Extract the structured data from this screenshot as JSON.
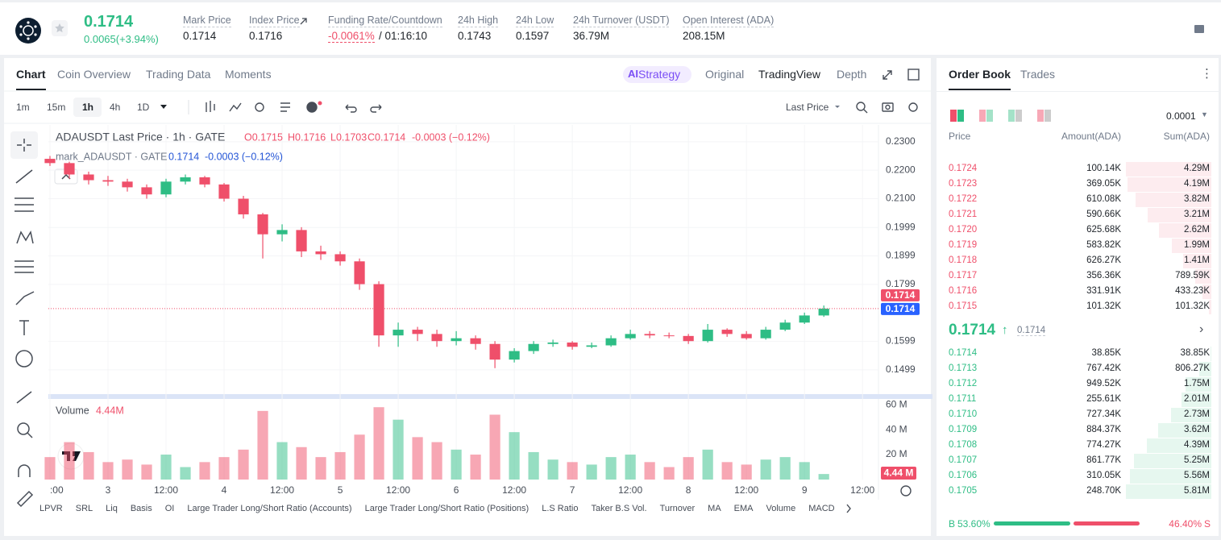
{
  "header": {
    "price": "0.1714",
    "change": "0.0065(+3.94%)",
    "stats": [
      {
        "label": "Mark Price",
        "value": "0.1714"
      },
      {
        "label": "Index Price",
        "value": "0.1716"
      },
      {
        "label": "Funding Rate/Countdown",
        "value": "-0.0061%",
        "extra": "/ 01:16:10"
      },
      {
        "label": "24h High",
        "value": "0.1743"
      },
      {
        "label": "24h Low",
        "value": "0.1597"
      },
      {
        "label": "24h Turnover (USDT)",
        "value": "36.79M"
      },
      {
        "label": "Open Interest (ADA)",
        "value": "208.15M"
      }
    ]
  },
  "tabs": {
    "left": [
      "Chart",
      "Coin Overview",
      "Trading Data",
      "Moments"
    ],
    "right": [
      "Strategy",
      "Original",
      "TradingView",
      "Depth"
    ]
  },
  "toolbar": {
    "intervals": [
      "1m",
      "15m",
      "1h",
      "4h",
      "1D"
    ],
    "price_type": "Last Price"
  },
  "chart_data": {
    "type": "candlestick",
    "title": "ADAUSDT Last Price · 1h · GATE",
    "ohlc_legend": [
      "O0.1715",
      "H0.1716",
      "L0.1703",
      "C0.1714",
      "-0.0003 (−0.12%)"
    ],
    "mark_legend": "mark_ADAUSDT · GATE",
    "mark_values": [
      "0.1714",
      "-0.0003 (−0.12%)"
    ],
    "x": [
      0,
      4,
      8,
      12,
      16,
      20,
      24,
      28,
      32,
      36,
      40,
      44,
      48,
      52,
      56,
      60,
      64,
      68,
      72,
      76,
      80,
      84,
      88,
      92,
      96,
      100,
      104,
      108,
      112,
      116,
      120,
      124,
      128,
      132,
      136,
      140,
      144,
      148,
      152,
      156,
      160
    ],
    "open": [
      0.224,
      0.2225,
      0.2185,
      0.2165,
      0.216,
      0.214,
      0.2115,
      0.216,
      0.2175,
      0.215,
      0.21,
      0.2045,
      0.1975,
      0.199,
      0.1915,
      0.1905,
      0.188,
      0.18,
      0.162,
      0.164,
      0.1625,
      0.16,
      0.161,
      0.159,
      0.1535,
      0.1565,
      0.159,
      0.1595,
      0.158,
      0.1585,
      0.161,
      0.1625,
      0.162,
      0.1618,
      0.16,
      0.164,
      0.1625,
      0.161,
      0.164,
      0.1665,
      0.169
    ],
    "high": [
      0.225,
      0.223,
      0.2195,
      0.218,
      0.217,
      0.215,
      0.217,
      0.2185,
      0.218,
      0.2155,
      0.211,
      0.205,
      0.201,
      0.2,
      0.1935,
      0.1915,
      0.189,
      0.181,
      0.1665,
      0.165,
      0.164,
      0.1635,
      0.162,
      0.16,
      0.1575,
      0.16,
      0.1605,
      0.16,
      0.1595,
      0.162,
      0.164,
      0.1635,
      0.163,
      0.1625,
      0.166,
      0.1645,
      0.1635,
      0.165,
      0.1675,
      0.17,
      0.1725
    ],
    "low": [
      0.2215,
      0.217,
      0.215,
      0.2145,
      0.2125,
      0.21,
      0.2105,
      0.215,
      0.214,
      0.209,
      0.203,
      0.189,
      0.195,
      0.1895,
      0.1885,
      0.1865,
      0.178,
      0.158,
      0.158,
      0.16,
      0.158,
      0.1585,
      0.157,
      0.1505,
      0.1525,
      0.1555,
      0.158,
      0.157,
      0.1575,
      0.158,
      0.1605,
      0.161,
      0.161,
      0.159,
      0.1595,
      0.1615,
      0.1605,
      0.1605,
      0.1635,
      0.166,
      0.1685
    ],
    "close": [
      0.2225,
      0.2185,
      0.2165,
      0.216,
      0.214,
      0.2115,
      0.216,
      0.2175,
      0.215,
      0.21,
      0.2045,
      0.1975,
      0.199,
      0.1915,
      0.1905,
      0.188,
      0.18,
      0.162,
      0.164,
      0.1625,
      0.16,
      0.161,
      0.159,
      0.1535,
      0.1565,
      0.159,
      0.1595,
      0.158,
      0.1585,
      0.161,
      0.1625,
      0.162,
      0.1618,
      0.16,
      0.164,
      0.1625,
      0.161,
      0.164,
      0.1665,
      0.169,
      0.1714
    ],
    "xlim": [
      -0.33,
      171.3
    ],
    "xticks": [
      {
        "value": 0,
        "label": ":00"
      },
      {
        "value": 12,
        "label": "3"
      },
      {
        "value": 24,
        "label": "12:00"
      },
      {
        "value": 36,
        "label": "4"
      },
      {
        "value": 48,
        "label": "12:00"
      },
      {
        "value": 60,
        "label": "5"
      },
      {
        "value": 72,
        "label": "12:00"
      },
      {
        "value": 84,
        "label": "6"
      },
      {
        "value": 96,
        "label": "12:00"
      },
      {
        "value": 108,
        "label": "7"
      },
      {
        "value": 120,
        "label": "12:00"
      },
      {
        "value": 132,
        "label": "8"
      },
      {
        "value": 144,
        "label": "12:00"
      },
      {
        "value": 156,
        "label": "9"
      },
      {
        "value": 168,
        "label": "12:00"
      }
    ],
    "ylim": [
      0.1411,
      0.2359
    ],
    "yticks": [
      {
        "value": 0.23,
        "label": "0.2300"
      },
      {
        "value": 0.22,
        "label": "0.2200"
      },
      {
        "value": 0.21,
        "label": "0.2100"
      },
      0.1999,
      0.1899,
      0.1799,
      0.1599,
      0.1499
    ],
    "last_price": 0.1714,
    "mark_price": 0.1714,
    "colors": {
      "up": "#2ebd85",
      "down": "#ef4f6a"
    },
    "volume": {
      "title": "Volume",
      "last_label": "4.44M",
      "tag_label": "4.44 M",
      "values": [
        18,
        30,
        22,
        14,
        16,
        12,
        20,
        10,
        14,
        18,
        24,
        55,
        30,
        26,
        18,
        22,
        36,
        58,
        48,
        34,
        30,
        24,
        20,
        52,
        38,
        22,
        16,
        14,
        12,
        18,
        20,
        14,
        10,
        18,
        24,
        14,
        12,
        16,
        18,
        14,
        4.44
      ],
      "ylim": [
        0,
        64.6
      ],
      "yticks": [
        {
          "value": 60,
          "label": "60 M"
        },
        {
          "value": 40,
          "label": "40 M"
        },
        {
          "value": 20,
          "label": "20 M"
        }
      ]
    }
  },
  "indicators": [
    "LPVR",
    "SRL",
    "Liq",
    "Basis",
    "OI",
    "Large Trader Long/Short Ratio (Accounts)",
    "Large Trader Long/Short Ratio (Positions)",
    "L.S Ratio",
    "Taker B.S Vol.",
    "Turnover",
    "MA",
    "EMA",
    "Volume",
    "MACD"
  ],
  "order_book": {
    "tabs": [
      "Order Book",
      "Trades"
    ],
    "precision": "0.0001",
    "columns": [
      "Price",
      "Amount(ADA)",
      "Sum(ADA)"
    ],
    "asks": [
      {
        "price": "0.1724",
        "amount": "100.14K",
        "sum": {
          "value": 4290000,
          "label": "4.29M"
        }
      },
      {
        "price": "0.1723",
        "amount": "369.05K",
        "sum": {
          "value": 4190000,
          "label": "4.19M"
        }
      },
      {
        "price": "0.1722",
        "amount": "610.08K",
        "sum": {
          "value": 3820000,
          "label": "3.82M"
        }
      },
      {
        "price": "0.1721",
        "amount": "590.66K",
        "sum": {
          "value": 3210000,
          "label": "3.21M"
        }
      },
      {
        "price": "0.1720",
        "amount": "625.68K",
        "sum": {
          "value": 2620000,
          "label": "2.62M"
        }
      },
      {
        "price": "0.1719",
        "amount": "583.82K",
        "sum": {
          "value": 1990000,
          "label": "1.99M"
        }
      },
      {
        "price": "0.1718",
        "amount": "626.27K",
        "sum": {
          "value": 1410000,
          "label": "1.41M"
        }
      },
      {
        "price": "0.1717",
        "amount": "356.36K",
        "sum": {
          "value": 789590,
          "label": "789.59K"
        }
      },
      {
        "price": "0.1716",
        "amount": "331.91K",
        "sum": {
          "value": 433230,
          "label": "433.23K"
        }
      },
      {
        "price": "0.1715",
        "amount": "101.32K",
        "sum": {
          "value": 101320,
          "label": "101.32K"
        }
      }
    ],
    "mid_price": "0.1714",
    "mark_price": "0.1714",
    "bids": [
      {
        "price": "0.1714",
        "amount": "38.85K",
        "sum": {
          "value": 38850,
          "label": "38.85K"
        }
      },
      {
        "price": "0.1713",
        "amount": "767.42K",
        "sum": {
          "value": 806270,
          "label": "806.27K"
        }
      },
      {
        "price": "0.1712",
        "amount": "949.52K",
        "sum": {
          "value": 1750000,
          "label": "1.75M"
        }
      },
      {
        "price": "0.1711",
        "amount": "255.61K",
        "sum": {
          "value": 2010000,
          "label": "2.01M"
        }
      },
      {
        "price": "0.1710",
        "amount": "727.34K",
        "sum": {
          "value": 2730000,
          "label": "2.73M"
        }
      },
      {
        "price": "0.1709",
        "amount": "884.37K",
        "sum": {
          "value": 3620000,
          "label": "3.62M"
        }
      },
      {
        "price": "0.1708",
        "amount": "774.27K",
        "sum": {
          "value": 4390000,
          "label": "4.39M"
        }
      },
      {
        "price": "0.1707",
        "amount": "861.77K",
        "sum": {
          "value": 5250000,
          "label": "5.25M"
        }
      },
      {
        "price": "0.1706",
        "amount": "310.05K",
        "sum": {
          "value": 5560000,
          "label": "5.56M"
        }
      },
      {
        "price": "0.1705",
        "amount": "248.70K",
        "sum": {
          "value": 5810000,
          "label": "5.81M"
        }
      }
    ],
    "ratio": {
      "buy_tag": "B",
      "buy": {
        "value": 53.6,
        "label": "53.60%"
      },
      "sell": {
        "value": 46.4,
        "label": "46.40%"
      },
      "sell_tag": "S"
    }
  }
}
